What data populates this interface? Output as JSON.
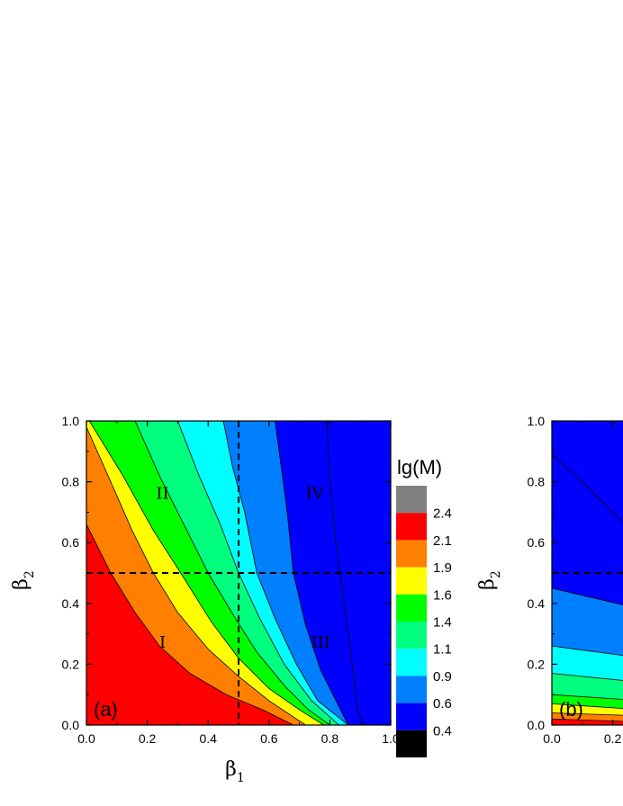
{
  "chart_data": [
    {
      "type": "heatmap",
      "panel_label": "(a)",
      "xlabel": "β",
      "xlabel_sub": "1",
      "ylabel": "β",
      "ylabel_sub": "2",
      "xlim": [
        0,
        1
      ],
      "ylim": [
        0,
        1
      ],
      "xticks": [
        "0.0",
        "0.2",
        "0.4",
        "0.6",
        "0.8",
        "1.0"
      ],
      "yticks": [
        "0.0",
        "0.2",
        "0.4",
        "0.6",
        "0.8",
        "1.0"
      ],
      "guide_lines": {
        "x": 0.5,
        "y": 0.5
      },
      "region_labels": [
        {
          "text": "I",
          "x": 0.25,
          "y": 0.27
        },
        {
          "text": "II",
          "x": 0.25,
          "y": 0.76
        },
        {
          "text": "III",
          "x": 0.77,
          "y": 0.27
        },
        {
          "text": "IV",
          "x": 0.75,
          "y": 0.76
        }
      ],
      "contours": [
        {
          "level": 2.1,
          "points": [
            [
              0,
              0.66
            ],
            [
              0.08,
              0.5
            ],
            [
              0.16,
              0.37
            ],
            [
              0.24,
              0.26
            ],
            [
              0.34,
              0.17
            ],
            [
              0.46,
              0.1
            ],
            [
              0.58,
              0.05
            ],
            [
              0.68,
              0.0
            ]
          ]
        },
        {
          "level": 1.9,
          "points": [
            [
              0,
              0.98
            ],
            [
              0.08,
              0.8
            ],
            [
              0.15,
              0.64
            ],
            [
              0.22,
              0.5
            ],
            [
              0.3,
              0.37
            ],
            [
              0.4,
              0.25
            ],
            [
              0.5,
              0.16
            ],
            [
              0.6,
              0.08
            ],
            [
              0.72,
              0.0
            ]
          ]
        },
        {
          "level": 1.6,
          "points": [
            [
              0.01,
              1.0
            ],
            [
              0.12,
              0.82
            ],
            [
              0.22,
              0.64
            ],
            [
              0.31,
              0.5
            ],
            [
              0.41,
              0.34
            ],
            [
              0.5,
              0.22
            ],
            [
              0.6,
              0.12
            ],
            [
              0.7,
              0.05
            ],
            [
              0.78,
              0.0
            ]
          ]
        },
        {
          "level": 1.4,
          "points": [
            [
              0.16,
              1.0
            ],
            [
              0.24,
              0.82
            ],
            [
              0.32,
              0.66
            ],
            [
              0.4,
              0.5
            ],
            [
              0.49,
              0.35
            ],
            [
              0.56,
              0.24
            ],
            [
              0.65,
              0.13
            ],
            [
              0.73,
              0.05
            ],
            [
              0.8,
              0.0
            ]
          ]
        },
        {
          "level": 1.1,
          "points": [
            [
              0.3,
              1.0
            ],
            [
              0.37,
              0.82
            ],
            [
              0.44,
              0.66
            ],
            [
              0.5,
              0.5
            ],
            [
              0.57,
              0.35
            ],
            [
              0.65,
              0.2
            ],
            [
              0.74,
              0.08
            ],
            [
              0.83,
              0.0
            ]
          ]
        },
        {
          "level": 0.9,
          "points": [
            [
              0.45,
              1.0
            ],
            [
              0.48,
              0.85
            ],
            [
              0.52,
              0.7
            ],
            [
              0.56,
              0.5
            ],
            [
              0.62,
              0.35
            ],
            [
              0.69,
              0.2
            ],
            [
              0.76,
              0.08
            ],
            [
              0.86,
              0.0
            ]
          ]
        },
        {
          "level": 0.6,
          "points": [
            [
              0.62,
              1.0
            ],
            [
              0.64,
              0.85
            ],
            [
              0.66,
              0.7
            ],
            [
              0.68,
              0.5
            ],
            [
              0.72,
              0.33
            ],
            [
              0.77,
              0.18
            ],
            [
              0.82,
              0.08
            ],
            [
              0.86,
              0.0
            ]
          ]
        },
        {
          "level": 0.4,
          "points": [
            [
              0.79,
              1.0
            ],
            [
              0.8,
              0.8
            ],
            [
              0.82,
              0.6
            ],
            [
              0.84,
              0.45
            ],
            [
              0.86,
              0.3
            ],
            [
              0.88,
              0.15
            ],
            [
              0.89,
              0.05
            ],
            [
              0.91,
              0.0
            ]
          ]
        }
      ],
      "color_bands": [
        "#ff0000",
        "#ff7f00",
        "#ffff00",
        "#00ff00",
        "#00ff7f",
        "#00ffff",
        "#007fff",
        "#0000ff",
        "#0000ff"
      ]
    },
    {
      "type": "heatmap",
      "panel_label": "(b)",
      "ylabel": "β",
      "ylabel_sub": "2",
      "xlim": [
        0,
        1
      ],
      "ylim": [
        0,
        1
      ],
      "xticks": [
        "0.0",
        "0.2"
      ],
      "yticks": [
        "0.0",
        "0.2",
        "0.4",
        "0.6",
        "0.8",
        "1.0"
      ],
      "guide_lines": {
        "y": 0.5
      },
      "contours": [
        {
          "level": 2.1,
          "points": [
            [
              0,
              0.02
            ],
            [
              0.3,
              0.01
            ]
          ]
        },
        {
          "level": 1.9,
          "points": [
            [
              0,
              0.04
            ],
            [
              0.3,
              0.03
            ]
          ]
        },
        {
          "level": 1.6,
          "points": [
            [
              0,
              0.07
            ],
            [
              0.3,
              0.05
            ]
          ]
        },
        {
          "level": 1.4,
          "points": [
            [
              0,
              0.1
            ],
            [
              0.3,
              0.08
            ]
          ]
        },
        {
          "level": 1.1,
          "points": [
            [
              0,
              0.17
            ],
            [
              0.3,
              0.14
            ]
          ]
        },
        {
          "level": 0.9,
          "points": [
            [
              0,
              0.26
            ],
            [
              0.3,
              0.22
            ]
          ]
        },
        {
          "level": 0.6,
          "points": [
            [
              0,
              0.45
            ],
            [
              0.3,
              0.38
            ]
          ]
        },
        {
          "level": 0.4,
          "points": [
            [
              0,
              0.89
            ],
            [
              0.1,
              0.8
            ],
            [
              0.22,
              0.68
            ],
            [
              0.3,
              0.62
            ]
          ]
        }
      ],
      "color_bands": [
        "#ff0000",
        "#ff7f00",
        "#ffff00",
        "#00ff00",
        "#00ff7f",
        "#00ffff",
        "#007fff",
        "#0000ff",
        "#0000ff"
      ]
    }
  ],
  "legend": {
    "title": "lg(M)",
    "entries": [
      {
        "label": "2.4",
        "color": "#808080"
      },
      {
        "label": "2.1",
        "color": "#ff0000"
      },
      {
        "label": "1.9",
        "color": "#ff7f00"
      },
      {
        "label": "1.6",
        "color": "#ffff00"
      },
      {
        "label": "1.4",
        "color": "#00ff00"
      },
      {
        "label": "1.1",
        "color": "#00ff7f"
      },
      {
        "label": "0.9",
        "color": "#00ffff"
      },
      {
        "label": "0.6",
        "color": "#007fff"
      },
      {
        "label": "0.4",
        "color": "#0000ff"
      },
      {
        "label": "",
        "color": "#000000"
      }
    ]
  }
}
